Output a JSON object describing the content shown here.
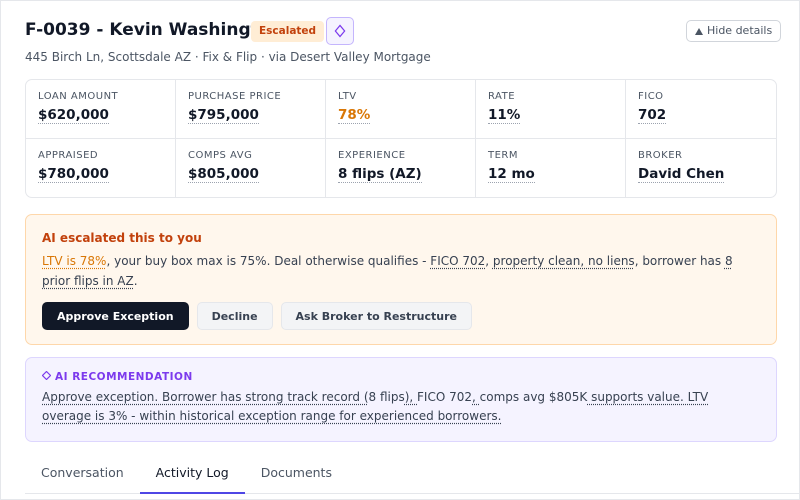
{
  "header": {
    "title": "F-0039 - Kevin Washington",
    "badge": "Escalated",
    "hide": "Hide details",
    "subtitle": "445 Birch Ln, Scottsdale AZ · Fix & Flip · via Desert Valley Mortgage"
  },
  "metrics": [
    {
      "label": "LOAN AMOUNT",
      "value": "$620,000"
    },
    {
      "label": "PURCHASE PRICE",
      "value": "$795,000"
    },
    {
      "label": "LTV",
      "value": "78%"
    },
    {
      "label": "RATE",
      "value": "11%"
    },
    {
      "label": "FICO",
      "value": "702"
    },
    {
      "label": "APPRAISED",
      "value": "$780,000"
    },
    {
      "label": "COMPS AVG",
      "value": "$805,000"
    },
    {
      "label": "EXPERIENCE",
      "value": "8 flips (AZ)"
    },
    {
      "label": "TERM",
      "value": "12 mo"
    },
    {
      "label": "BROKER",
      "value": "David Chen"
    }
  ],
  "escalation": {
    "title": "AI escalated this to you",
    "body": [
      "LTV is 78%",
      ", your buy box max is 75%. Deal otherwise qualifies - ",
      "FICO 702",
      ", ",
      "property clean, no liens",
      ", borrower has ",
      "8 prior flips in AZ",
      "."
    ],
    "buttons": [
      "Approve Exception",
      "Decline",
      "Ask Broker to Restructure"
    ]
  },
  "recommendation": {
    "title": "AI RECOMMENDATION",
    "body": [
      "Approve exception. Borrower has strong track record (",
      "8 flips",
      "), ",
      "FICO 702",
      ", ",
      "comps avg $805K",
      " supports value. LTV overage is 3% - within historical exception range for experienced borrowers."
    ]
  },
  "tabs": [
    "Conversation",
    "Activity Log",
    "Documents"
  ]
}
